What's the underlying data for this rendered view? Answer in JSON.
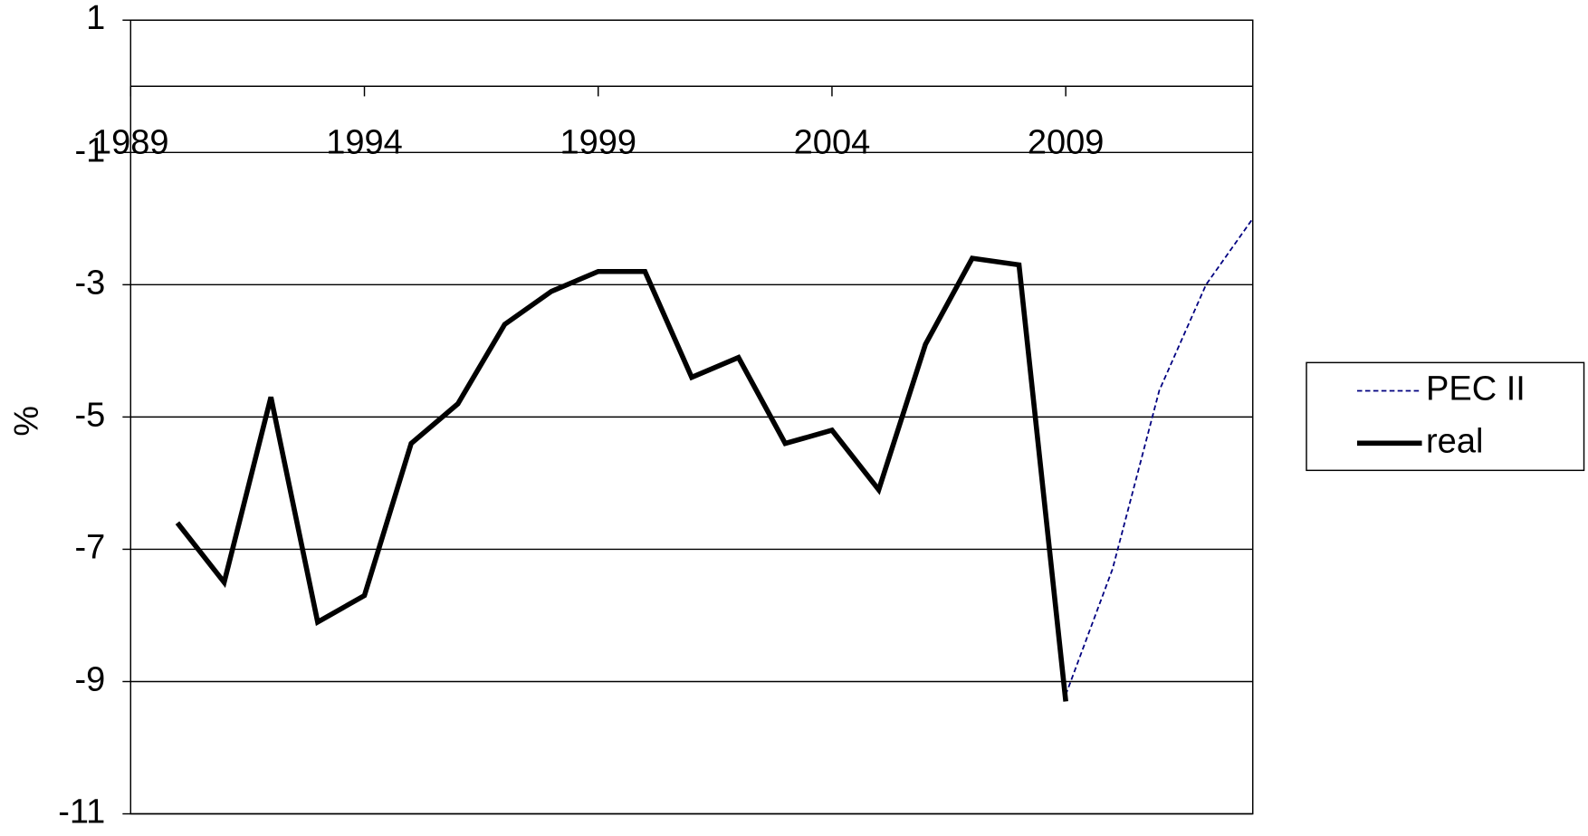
{
  "chart_data": {
    "type": "line",
    "ylabel": "%",
    "x": [
      1990,
      1991,
      1992,
      1993,
      1994,
      1995,
      1996,
      1997,
      1998,
      1999,
      2000,
      2001,
      2002,
      2003,
      2004,
      2005,
      2006,
      2007,
      2008,
      2009,
      2010,
      2011,
      2012,
      2013
    ],
    "series": [
      {
        "name": "PEC II",
        "color": "#000080",
        "dashed": true,
        "values": [
          null,
          null,
          null,
          null,
          null,
          null,
          null,
          null,
          null,
          null,
          null,
          null,
          null,
          null,
          null,
          null,
          null,
          null,
          null,
          -9.2,
          -7.3,
          -4.6,
          -3.0,
          -2.0
        ]
      },
      {
        "name": "real",
        "color": "#000000",
        "dashed": false,
        "values": [
          -6.6,
          -7.5,
          -4.7,
          -8.1,
          -7.7,
          -5.4,
          -4.8,
          -3.6,
          -3.1,
          -2.8,
          -2.8,
          -4.4,
          -4.1,
          -5.4,
          -5.2,
          -6.1,
          -3.9,
          -2.6,
          -2.7,
          -9.3,
          null,
          null,
          null,
          null
        ]
      }
    ],
    "xlim": [
      1989,
      2013
    ],
    "xticks": [
      1989,
      1994,
      1999,
      2004,
      2009
    ],
    "ylim": [
      -11,
      1
    ],
    "yticks": [
      1,
      -1,
      -3,
      -5,
      -7,
      -9,
      -11
    ],
    "grid": true,
    "legend": "right"
  }
}
